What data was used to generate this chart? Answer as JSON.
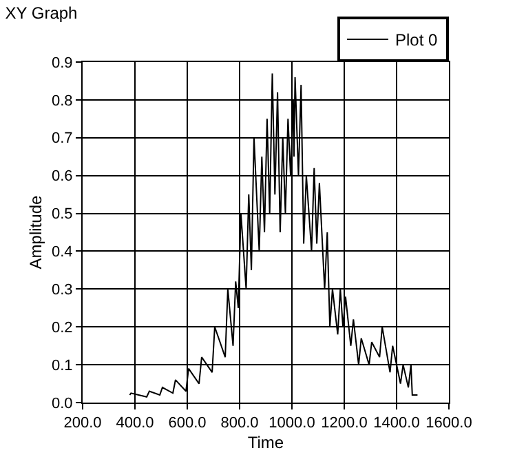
{
  "chart_data": {
    "type": "line",
    "title": "XY Graph",
    "xlabel": "Time",
    "ylabel": "Amplitude",
    "xlim": [
      200,
      1600
    ],
    "xticks": [
      {
        "value": 200,
        "label": "200.0"
      },
      {
        "value": 400,
        "label": "400.0"
      },
      {
        "value": 600,
        "label": "600.0"
      },
      {
        "value": 800,
        "label": "800.0"
      },
      {
        "value": 1000,
        "label": "1000.0"
      },
      {
        "value": 1200,
        "label": "1200.0"
      },
      {
        "value": 1400,
        "label": "1400.0"
      },
      {
        "value": 1600,
        "label": "1600.0"
      }
    ],
    "ylim": [
      0,
      0.9
    ],
    "yticks": [
      {
        "value": 0,
        "label": "0.0"
      },
      0.1,
      0.2,
      0.3,
      0.4,
      0.5,
      0.6,
      0.7,
      0.8,
      0.9
    ],
    "grid": true,
    "legend": "top right",
    "marker": "none",
    "line_style": "solid",
    "series": [
      {
        "name": "Plot 0",
        "color": "#000000",
        "x": [
          380,
          385,
          445,
          455,
          495,
          505,
          545,
          555,
          595,
          605,
          645,
          655,
          695,
          705,
          745,
          755,
          775,
          785,
          795,
          805,
          825,
          835,
          845,
          855,
          875,
          885,
          895,
          905,
          915,
          925,
          935,
          945,
          955,
          965,
          975,
          985,
          995,
          1005,
          1008,
          1012,
          1025,
          1035,
          1045,
          1055,
          1075,
          1085,
          1095,
          1105,
          1125,
          1135,
          1145,
          1155,
          1175,
          1185,
          1195,
          1205,
          1225,
          1235,
          1255,
          1265,
          1295,
          1305,
          1335,
          1345,
          1375,
          1385,
          1415,
          1425,
          1445,
          1455,
          1460,
          1480
        ],
        "values": [
          0.02,
          0.025,
          0.015,
          0.03,
          0.02,
          0.04,
          0.025,
          0.06,
          0.03,
          0.09,
          0.05,
          0.12,
          0.08,
          0.2,
          0.12,
          0.3,
          0.15,
          0.32,
          0.25,
          0.5,
          0.3,
          0.55,
          0.35,
          0.7,
          0.4,
          0.65,
          0.45,
          0.75,
          0.5,
          0.87,
          0.55,
          0.82,
          0.45,
          0.7,
          0.5,
          0.75,
          0.6,
          0.8,
          0.65,
          0.86,
          0.6,
          0.84,
          0.42,
          0.6,
          0.4,
          0.62,
          0.42,
          0.58,
          0.3,
          0.45,
          0.2,
          0.3,
          0.18,
          0.3,
          0.2,
          0.28,
          0.15,
          0.22,
          0.1,
          0.17,
          0.1,
          0.16,
          0.12,
          0.2,
          0.08,
          0.15,
          0.05,
          0.1,
          0.04,
          0.1,
          0.02,
          0.02
        ]
      }
    ]
  }
}
